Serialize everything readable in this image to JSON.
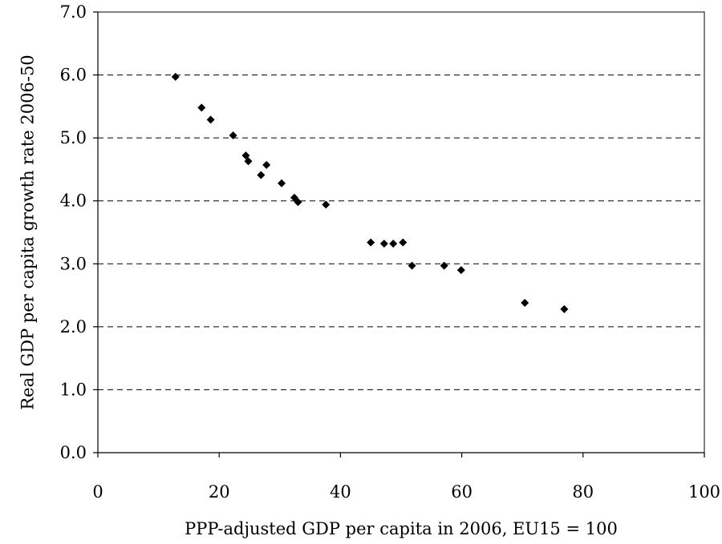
{
  "chart_data": {
    "type": "scatter",
    "xlabel": "PPP-adjusted GDP per capita in 2006, EU15 = 100",
    "ylabel": "Real GDP per capita growth rate 2006-50",
    "xlim": [
      0,
      100
    ],
    "ylim": [
      0,
      7
    ],
    "x_ticks": [
      "0",
      "20",
      "40",
      "60",
      "80",
      "100"
    ],
    "y_ticks": [
      "0.0",
      "1.0",
      "2.0",
      "3.0",
      "4.0",
      "5.0",
      "6.0",
      "7.0"
    ],
    "grid": "horizontal dashed",
    "marker": "diamond",
    "marker_color": "#000000",
    "points": [
      {
        "x": 12.8,
        "y": 5.97
      },
      {
        "x": 17.1,
        "y": 5.48
      },
      {
        "x": 18.6,
        "y": 5.29
      },
      {
        "x": 22.3,
        "y": 5.04
      },
      {
        "x": 24.4,
        "y": 4.72
      },
      {
        "x": 24.8,
        "y": 4.63
      },
      {
        "x": 26.9,
        "y": 4.41
      },
      {
        "x": 27.8,
        "y": 4.57
      },
      {
        "x": 30.3,
        "y": 4.28
      },
      {
        "x": 32.4,
        "y": 4.05
      },
      {
        "x": 33.0,
        "y": 3.98
      },
      {
        "x": 37.6,
        "y": 3.94
      },
      {
        "x": 45.0,
        "y": 3.34
      },
      {
        "x": 47.2,
        "y": 3.32
      },
      {
        "x": 48.7,
        "y": 3.32
      },
      {
        "x": 50.3,
        "y": 3.34
      },
      {
        "x": 51.8,
        "y": 2.97
      },
      {
        "x": 57.1,
        "y": 2.97
      },
      {
        "x": 59.9,
        "y": 2.9
      },
      {
        "x": 70.4,
        "y": 2.38
      },
      {
        "x": 76.9,
        "y": 2.28
      }
    ]
  }
}
